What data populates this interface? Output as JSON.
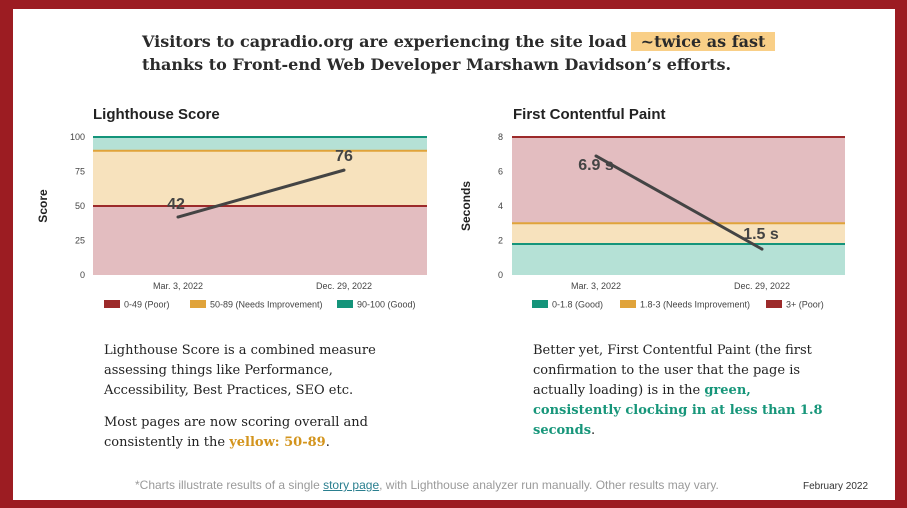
{
  "headline": {
    "line1": "Visitors to capradio.org are experiencing the site load",
    "highlight": "~twice as fast",
    "line2": "thanks to Front-end Web Developer Marshawn Davidson’s efforts."
  },
  "colors": {
    "border": "#9c1c22",
    "poor_band": "#e3bdc0",
    "mid_band": "#f7e2bd",
    "good_band": "#b5e1d6",
    "poor_line": "#9c2a2a",
    "mid_line": "#e0a33a",
    "good_line": "#14947a",
    "series_line": "#444444"
  },
  "chart_data": [
    {
      "type": "line",
      "title": "Lighthouse Score",
      "ylabel": "Score",
      "xlabel": "",
      "categories": [
        "Mar. 3, 2022",
        "Dec. 29, 2022"
      ],
      "values": [
        42,
        76
      ],
      "data_labels": [
        "42",
        "76"
      ],
      "ylim": [
        0,
        100
      ],
      "yticks": [
        "0",
        "25",
        "50",
        "75",
        "100"
      ],
      "bands": [
        {
          "from": 0,
          "to": 50,
          "color": "#e3bdc0",
          "line": "#9c2a2a"
        },
        {
          "from": 50,
          "to": 90,
          "color": "#f7e2bd",
          "line": "#e0a33a"
        },
        {
          "from": 90,
          "to": 100,
          "color": "#b5e1d6",
          "line": "#14947a"
        }
      ],
      "legend": [
        {
          "label": "0-49 (Poor)",
          "color": "#9c2a2a"
        },
        {
          "label": "50-89 (Needs Improvement)",
          "color": "#e0a33a"
        },
        {
          "label": "90-100 (Good)",
          "color": "#14947a"
        }
      ],
      "legend_position": "bottom"
    },
    {
      "type": "line",
      "title": "First Contentful Paint",
      "ylabel": "Seconds",
      "xlabel": "",
      "categories": [
        "Mar. 3, 2022",
        "Dec. 29, 2022"
      ],
      "values": [
        6.9,
        1.5
      ],
      "data_labels": [
        "6.9 s",
        "1.5 s"
      ],
      "ylim": [
        0,
        8
      ],
      "yticks": [
        "0",
        "2",
        "4",
        "6",
        "8"
      ],
      "bands": [
        {
          "from": 0,
          "to": 1.8,
          "color": "#b5e1d6",
          "line": "#14947a"
        },
        {
          "from": 1.8,
          "to": 3,
          "color": "#f7e2bd",
          "line": "#e0a33a"
        },
        {
          "from": 3,
          "to": 8,
          "color": "#e3bdc0",
          "line": "#9c2a2a"
        }
      ],
      "legend": [
        {
          "label": "0-1.8 (Good)",
          "color": "#14947a"
        },
        {
          "label": "1.8-3 (Needs Improvement)",
          "color": "#e0a33a"
        },
        {
          "label": "3+ (Poor)",
          "color": "#9c2a2a"
        }
      ],
      "legend_position": "bottom"
    }
  ],
  "left_text": {
    "p1": "Lighthouse Score is a combined measure assessing things like Performance, Accessibility, Best Practices, SEO etc.",
    "p2_before": "Most pages are now scoring overall and consistently in the",
    "p2_highlight": "yellow: 50-89",
    "p2_after": "."
  },
  "right_text": {
    "before": "Better yet, First Contentful Paint (the first confirmation to the user that the page is actually loading) is in the",
    "highlight": "green, consistently clocking in at less than 1.8 seconds",
    "after": "."
  },
  "footnote": {
    "before": "*Charts illustrate results of a single",
    "link": "story page",
    "after": ", with Lighthouse analyzer run manually. Other results may vary."
  },
  "date": "February 2022"
}
